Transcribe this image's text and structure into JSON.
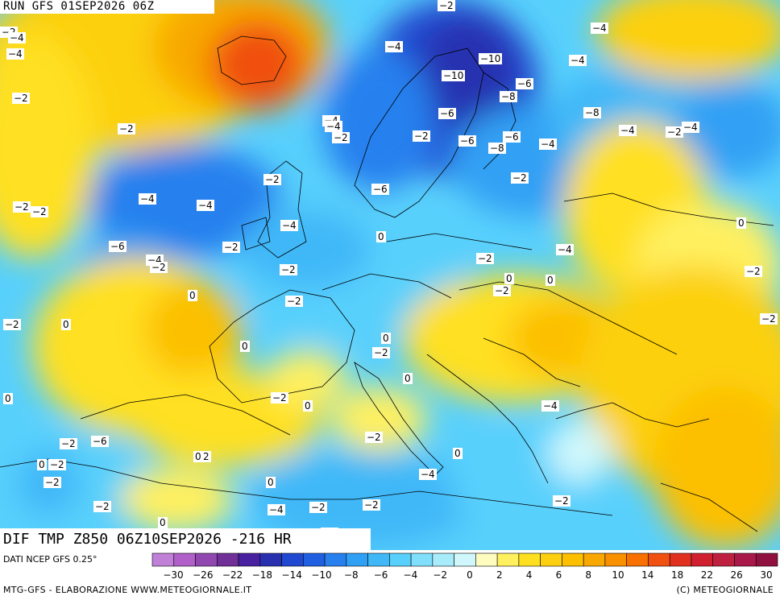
{
  "header": {
    "run_label": "RUN GFS 01SEP2026 06Z"
  },
  "field": {
    "label": "DIF TMP Z850 06Z10SEP2026 -216 HR"
  },
  "source": {
    "label": "DATI NCEP GFS 0.25°"
  },
  "footer": {
    "left": "MTG-GFS - ELABORAZIONE WWW.METEOGIORNALE.IT",
    "right": "(C) METEOGIORNALE"
  },
  "colorbar": {
    "colors": [
      "#c080d8",
      "#b060c8",
      "#9048b0",
      "#703098",
      "#4820a0",
      "#2830b0",
      "#2048d0",
      "#2060e0",
      "#2880ee",
      "#30a0f4",
      "#40b8f8",
      "#58d0fc",
      "#80e0fc",
      "#a8ecfc",
      "#d0f8fc",
      "#fffcc0",
      "#fff060",
      "#ffe020",
      "#fcd010",
      "#fcc000",
      "#f8a800",
      "#f89000",
      "#f87000",
      "#f05010",
      "#e03020",
      "#d02030",
      "#c02040",
      "#a81848",
      "#901040"
    ],
    "tick_labels": [
      "-30",
      "-26",
      "-22",
      "-18",
      "-14",
      "-10",
      "-8",
      "-6",
      "-4",
      "-2",
      "0",
      "2",
      "4",
      "6",
      "8",
      "10",
      "14",
      "18",
      "22",
      "26",
      "30"
    ]
  },
  "map_labels": [
    "-2",
    "-4",
    "-4",
    "-2",
    "-4",
    "-2",
    "-4",
    "-10",
    "-10",
    "-4",
    "-6",
    "-8",
    "-6",
    "-8",
    "-4",
    "-4",
    "-2",
    "-2",
    "-6",
    "-6",
    "-8",
    "-4",
    "-4",
    "-4",
    "-2",
    "-2",
    "-4",
    "-4",
    "-2",
    "-2",
    "-6",
    "-2",
    "-2",
    "-4",
    "0",
    "-2",
    "-6",
    "-4",
    "-2",
    "-2",
    "-4",
    "-2",
    "0",
    "-2",
    "0",
    "0",
    "-2",
    "0",
    "-2",
    "-2",
    "0",
    "0",
    "0",
    "-2",
    "0",
    "-2",
    "0",
    "-2",
    "0",
    "-4",
    "-2",
    "-2",
    "-6",
    "0",
    "0",
    "-2",
    "-2",
    "-2",
    "-4",
    "-2",
    "-2",
    "-4",
    "-2",
    "0",
    "-2",
    "-2",
    "0",
    "0"
  ]
}
